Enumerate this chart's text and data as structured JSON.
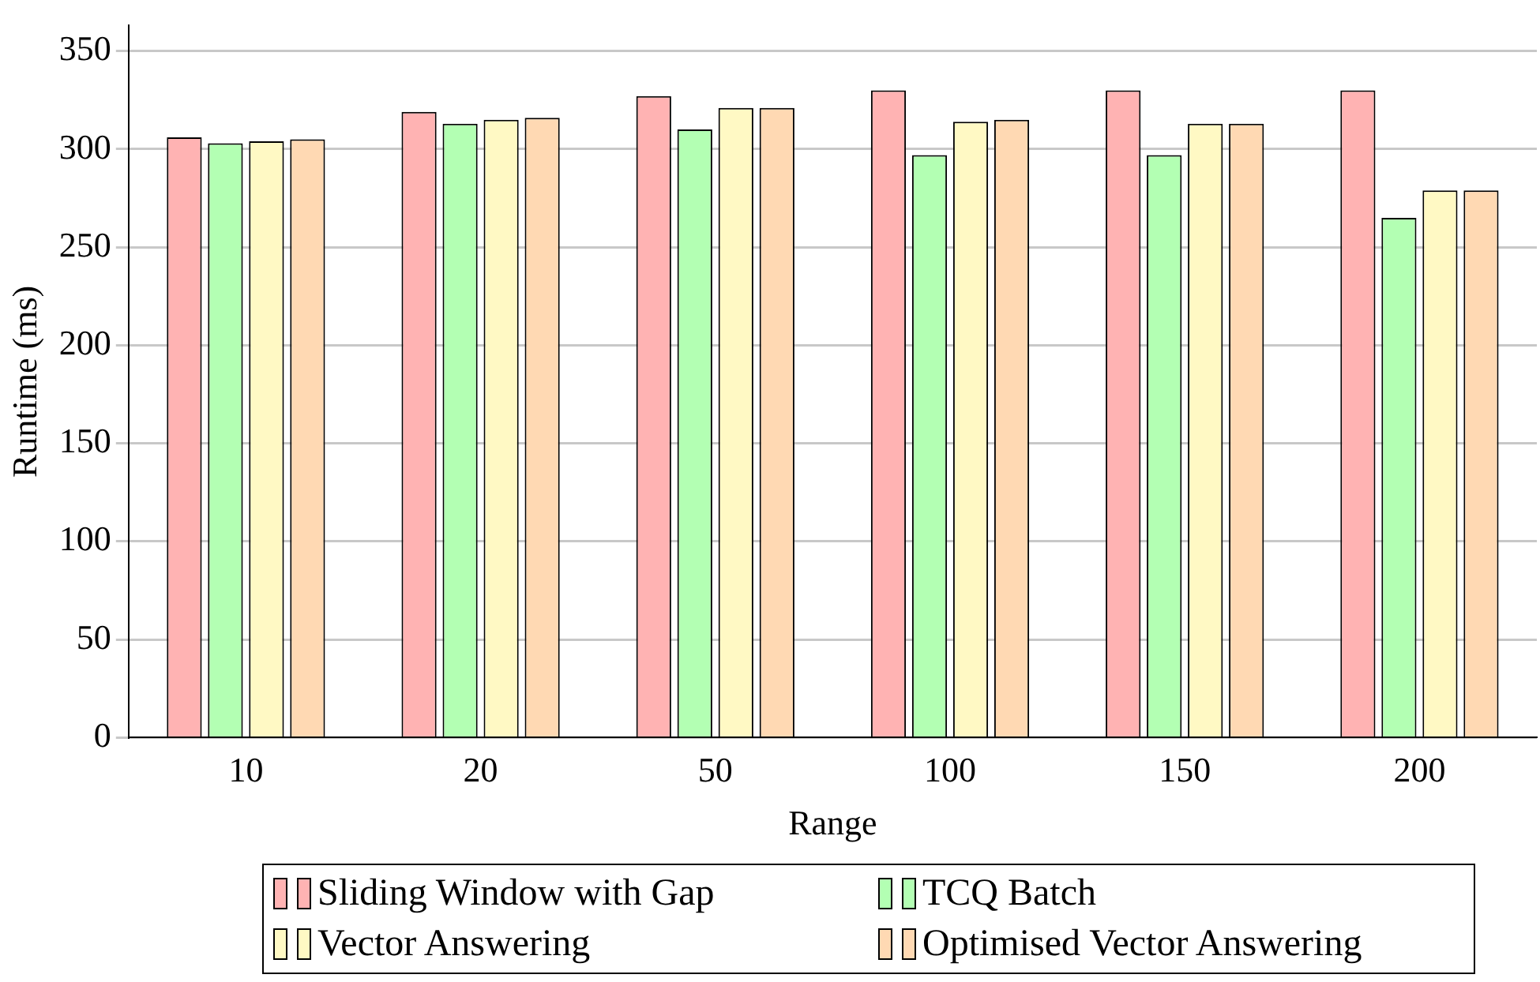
{
  "chart_data": {
    "type": "bar",
    "xlabel": "Range",
    "ylabel": "Runtime (ms)",
    "categories": [
      "10",
      "20",
      "50",
      "100",
      "150",
      "200"
    ],
    "series": [
      {
        "name": "Sliding Window with Gap",
        "color": "#ffb3b3",
        "values": [
          306,
          319,
          327,
          330,
          330,
          330
        ]
      },
      {
        "name": "TCQ Batch",
        "color": "#b3ffb3",
        "values": [
          303,
          313,
          310,
          297,
          297,
          265
        ]
      },
      {
        "name": "Vector Answering",
        "color": "#fff9c4",
        "values": [
          304,
          315,
          321,
          314,
          313,
          279
        ]
      },
      {
        "name": "Optimised Vector Answering",
        "color": "#ffd9b3",
        "values": [
          305,
          316,
          321,
          315,
          313,
          279
        ]
      }
    ],
    "ylim": [
      0,
      363
    ],
    "yticks": [
      0,
      50,
      100,
      150,
      200,
      250,
      300,
      350
    ],
    "grid": "y",
    "legend": "bottom"
  }
}
